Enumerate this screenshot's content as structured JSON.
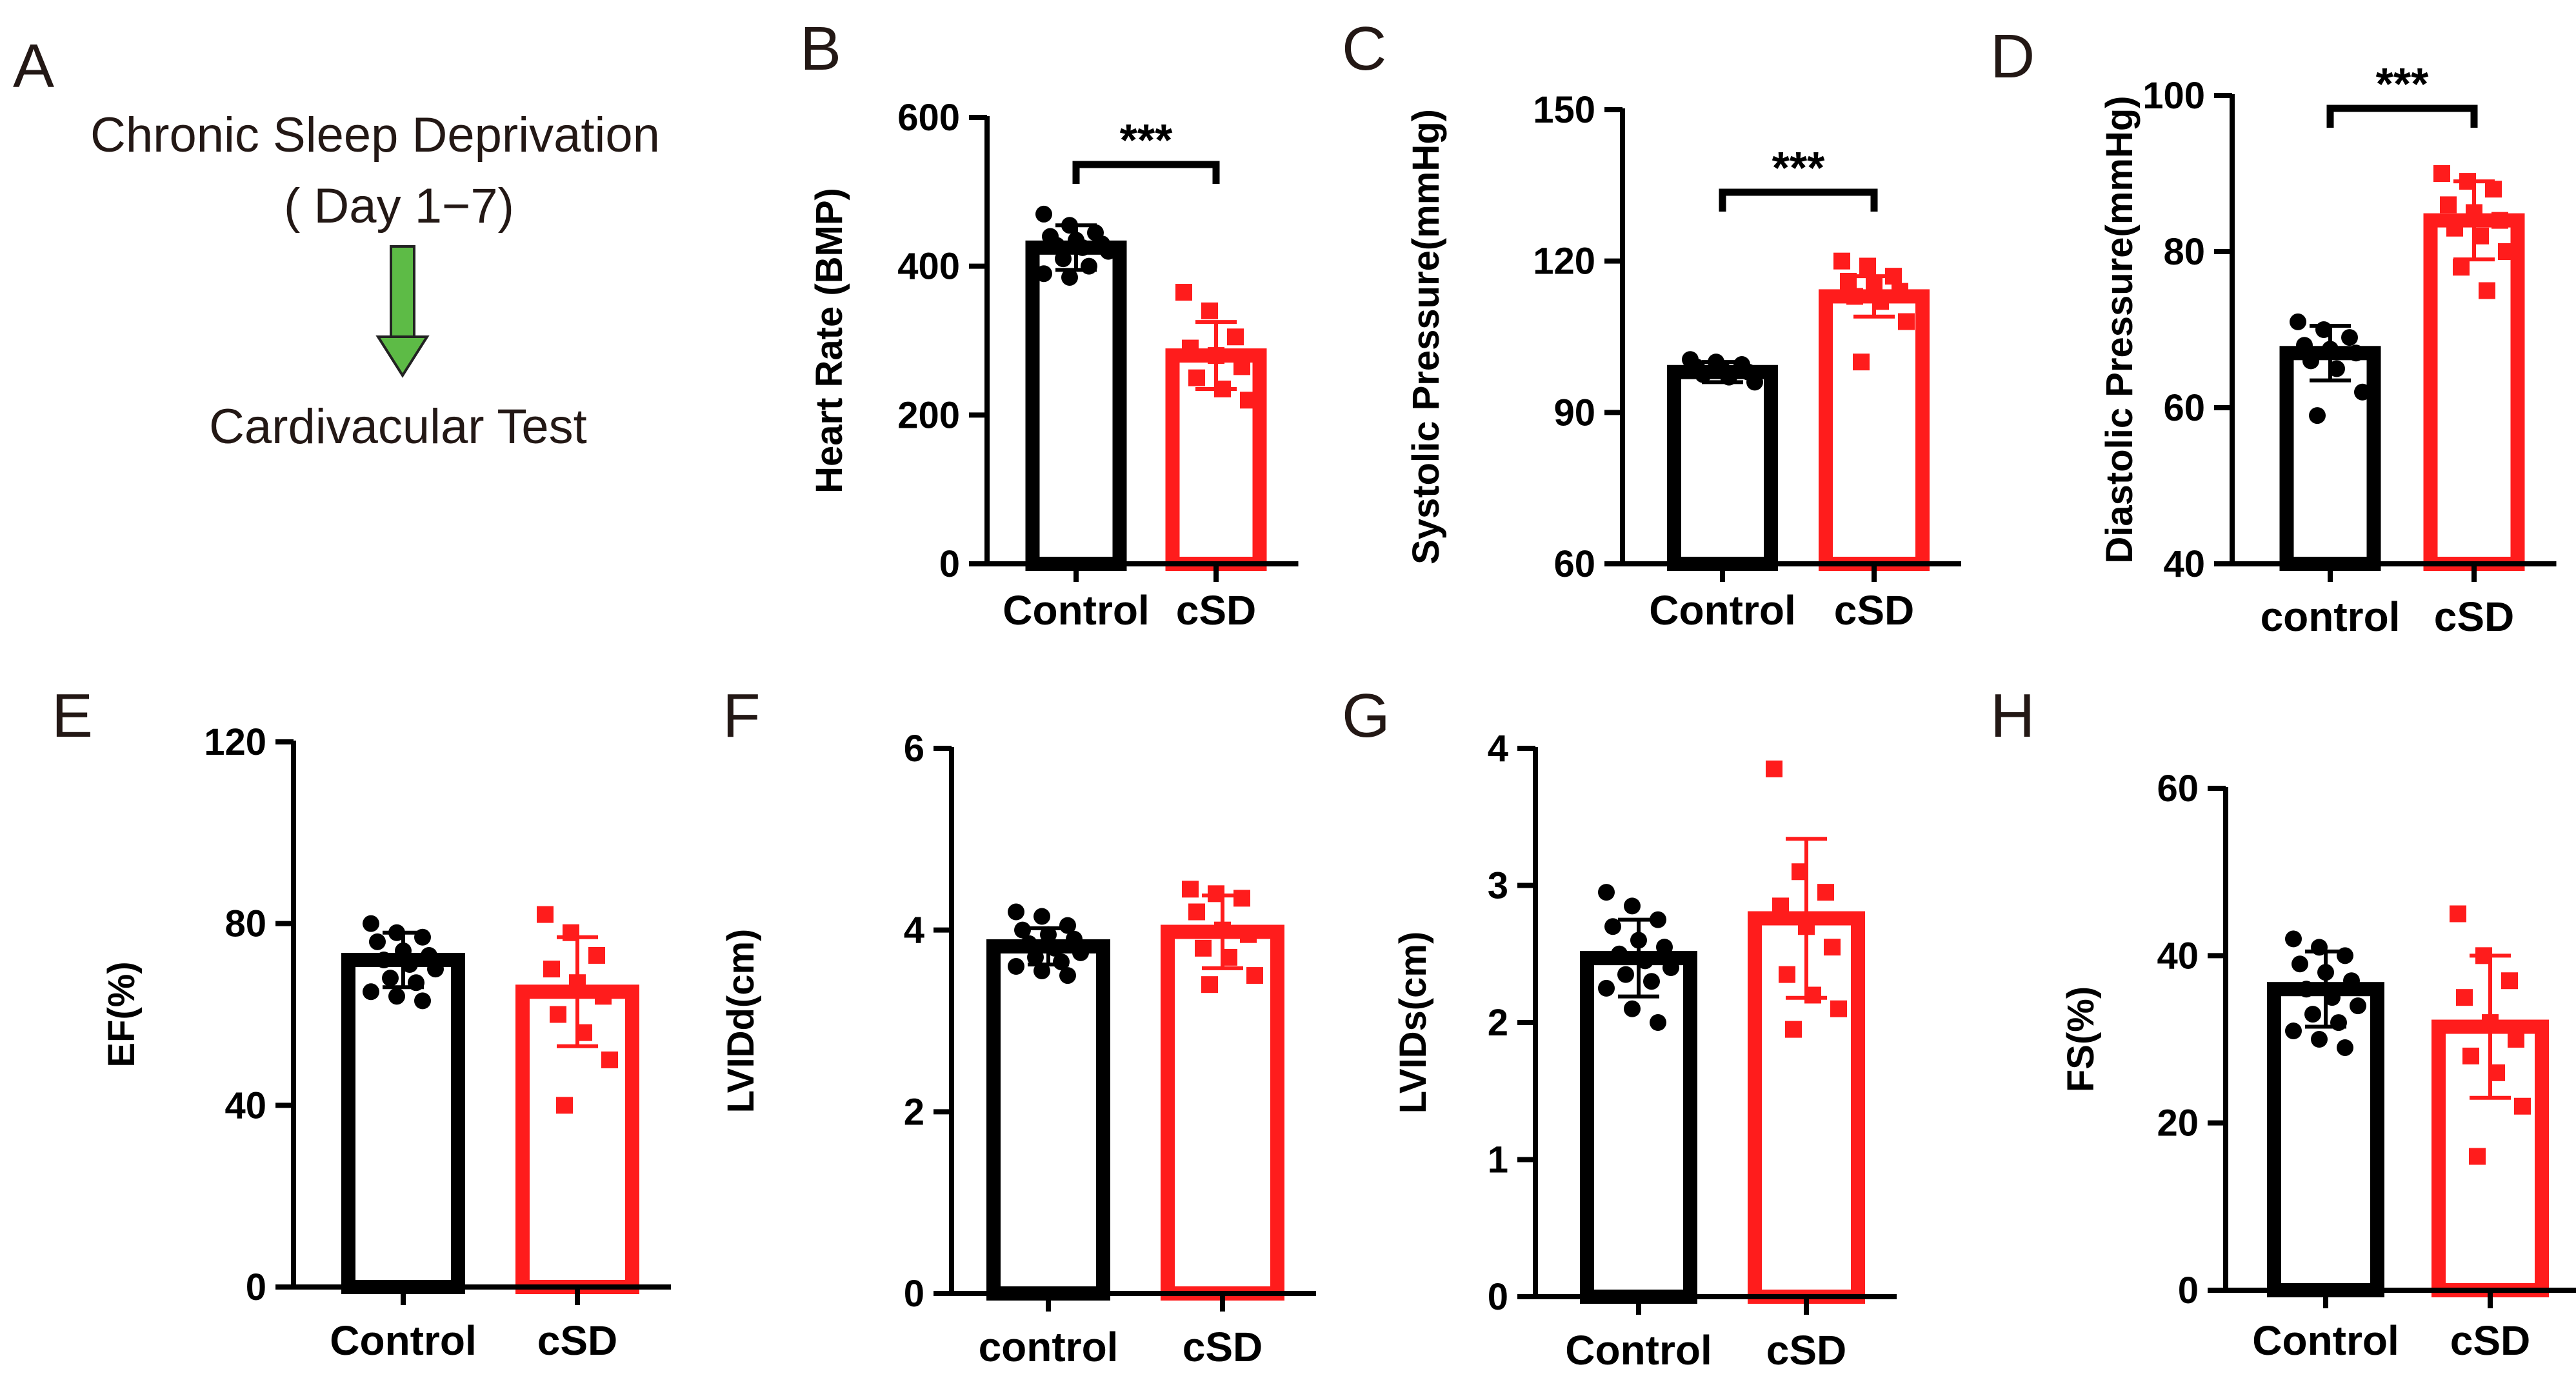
{
  "panel_a": {
    "letter": "A",
    "line1": "Chronic Sleep Deprivation",
    "line2": "( Day 1−7)",
    "line3": "Cardivacular Test",
    "arrow_color": "#5dbb46"
  },
  "colors": {
    "control": "#000000",
    "csd": "#ff1c1c"
  },
  "chart_data": [
    {
      "id": "B",
      "letter": "B",
      "type": "bar",
      "ylabel": "Heart Rate (BMP)",
      "categories": [
        "Control",
        "cSD"
      ],
      "ylim": [
        0,
        600
      ],
      "ticks": [
        "0",
        "200",
        "400",
        "600"
      ],
      "tick_values": [
        0,
        200,
        400,
        600
      ],
      "values": [
        425,
        280
      ],
      "err": [
        30,
        45
      ],
      "points": [
        [
          470,
          455,
          445,
          440,
          435,
          430,
          428,
          425,
          420,
          410,
          400,
          390,
          385
        ],
        [
          365,
          340,
          305,
          290,
          280,
          265,
          250,
          235,
          220
        ]
      ],
      "significance": "***"
    },
    {
      "id": "C",
      "letter": "C",
      "type": "bar",
      "ylabel": "Systolic Pressure(mmHg)",
      "categories": [
        "Control",
        "cSD"
      ],
      "ylim": [
        60,
        150
      ],
      "ticks": [
        "60",
        "90",
        "120",
        "150"
      ],
      "tick_values": [
        60,
        90,
        120,
        150
      ],
      "values": [
        98,
        113
      ],
      "err": [
        2,
        4
      ],
      "points": [
        [
          100.5,
          100,
          99.5,
          99,
          98.5,
          98,
          97.5,
          97,
          96
        ],
        [
          120,
          119,
          117,
          116,
          115,
          114,
          113,
          112,
          108,
          100
        ]
      ],
      "significance": "***"
    },
    {
      "id": "D",
      "letter": "D",
      "type": "bar",
      "ylabel": "Diastolic Pressure(mmHg)",
      "categories": [
        "control",
        "cSD"
      ],
      "ylim": [
        40,
        100
      ],
      "ticks": [
        "40",
        "60",
        "80",
        "100"
      ],
      "tick_values": [
        40,
        60,
        80,
        100
      ],
      "values": [
        67,
        84
      ],
      "err": [
        3.5,
        5
      ],
      "points": [
        [
          71,
          70,
          69,
          68,
          67.5,
          67,
          66,
          65,
          62,
          59
        ],
        [
          90,
          89,
          88,
          86,
          85,
          84,
          83,
          82,
          80,
          78,
          75
        ]
      ],
      "significance": "***"
    },
    {
      "id": "E",
      "letter": "E",
      "type": "bar",
      "ylabel": "EF(%)",
      "categories": [
        "Control",
        "cSD"
      ],
      "ylim": [
        0,
        120
      ],
      "ticks": [
        "0",
        "40",
        "80",
        "120"
      ],
      "tick_values": [
        0,
        40,
        80,
        120
      ],
      "values": [
        72,
        65
      ],
      "err": [
        6,
        12
      ],
      "points": [
        [
          80,
          78,
          77,
          76,
          74,
          73,
          72,
          71,
          70,
          68,
          67,
          65,
          64,
          63
        ],
        [
          82,
          78,
          73,
          70,
          67,
          64,
          60,
          56,
          50,
          40
        ]
      ],
      "significance": ""
    },
    {
      "id": "F",
      "letter": "F",
      "type": "bar",
      "ylabel": "LVIDd(cm)",
      "categories": [
        "control",
        "cSD"
      ],
      "ylim": [
        0,
        6
      ],
      "ticks": [
        "0",
        "2",
        "4",
        "6"
      ],
      "tick_values": [
        0,
        2,
        4,
        6
      ],
      "values": [
        3.82,
        3.98
      ],
      "err": [
        0.2,
        0.4
      ],
      "points": [
        [
          4.2,
          4.15,
          4.05,
          4.0,
          3.95,
          3.9,
          3.85,
          3.8,
          3.75,
          3.7,
          3.65,
          3.6,
          3.55,
          3.5
        ],
        [
          4.45,
          4.4,
          4.35,
          4.2,
          4.0,
          3.95,
          3.8,
          3.7,
          3.5,
          3.4
        ]
      ],
      "significance": ""
    },
    {
      "id": "G",
      "letter": "G",
      "type": "bar",
      "ylabel": "LVIDs(cm)",
      "categories": [
        "Control",
        "cSD"
      ],
      "ylim": [
        0,
        4
      ],
      "ticks": [
        "0",
        "1",
        "2",
        "3",
        "4"
      ],
      "tick_values": [
        0,
        1,
        2,
        3,
        4
      ],
      "values": [
        2.47,
        2.76
      ],
      "err": [
        0.28,
        0.58
      ],
      "points": [
        [
          2.95,
          2.85,
          2.75,
          2.7,
          2.6,
          2.55,
          2.5,
          2.45,
          2.4,
          2.35,
          2.3,
          2.25,
          2.1,
          2.0
        ],
        [
          3.85,
          3.1,
          2.95,
          2.85,
          2.7,
          2.55,
          2.35,
          2.2,
          2.1,
          1.95
        ]
      ],
      "significance": ""
    },
    {
      "id": "H",
      "letter": "H",
      "type": "bar",
      "ylabel": "FS(%)",
      "categories": [
        "Control",
        "cSD"
      ],
      "ylim": [
        0,
        60
      ],
      "ticks": [
        "0",
        "20",
        "40",
        "60"
      ],
      "tick_values": [
        0,
        20,
        40,
        60
      ],
      "values": [
        36,
        31.5
      ],
      "err": [
        4.5,
        8.5
      ],
      "points": [
        [
          42,
          41,
          40,
          39,
          38,
          37,
          36,
          35,
          34,
          33,
          32,
          31,
          30,
          29
        ],
        [
          45,
          40,
          37,
          35,
          32,
          30,
          28,
          26,
          22,
          16
        ]
      ],
      "significance": ""
    }
  ]
}
